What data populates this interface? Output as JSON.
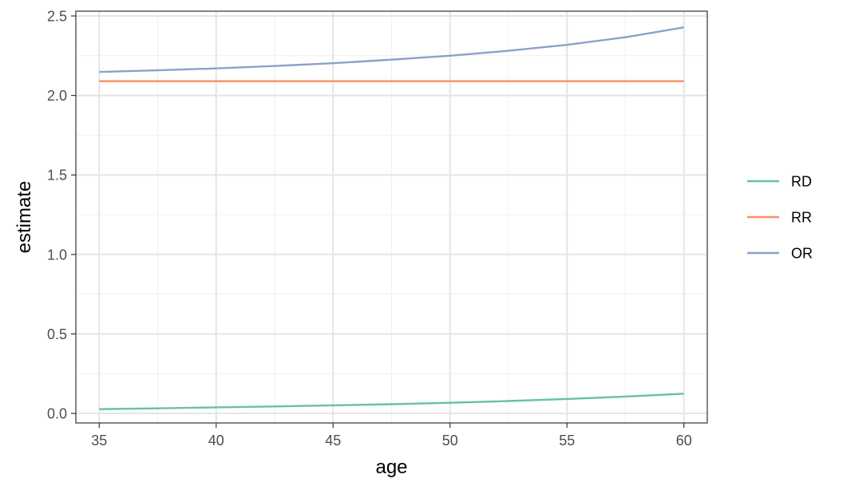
{
  "chart_data": {
    "type": "line",
    "title": "",
    "xlabel": "age",
    "ylabel": "estimate",
    "xlim": [
      34,
      61
    ],
    "ylim": [
      -0.06,
      2.53
    ],
    "x_ticks": [
      35,
      40,
      45,
      50,
      55,
      60
    ],
    "x_tick_labels": [
      "35",
      "40",
      "45",
      "50",
      "55",
      "60"
    ],
    "y_ticks": [
      0.0,
      0.5,
      1.0,
      1.5,
      2.0,
      2.5
    ],
    "y_tick_labels": [
      "0.0",
      "0.5",
      "1.0",
      "1.5",
      "2.0",
      "2.5"
    ],
    "grid": true,
    "legend_position": "right",
    "x": [
      35,
      37.5,
      40,
      42.5,
      45,
      47.5,
      50,
      52.5,
      55,
      57.5,
      60
    ],
    "series": [
      {
        "name": "RD",
        "color": "#66c2a5",
        "values": [
          0.027,
          0.032,
          0.038,
          0.044,
          0.051,
          0.058,
          0.067,
          0.078,
          0.091,
          0.106,
          0.124
        ]
      },
      {
        "name": "RR",
        "color": "#fc8d62",
        "values": [
          2.09,
          2.09,
          2.09,
          2.09,
          2.09,
          2.09,
          2.09,
          2.09,
          2.09,
          2.09,
          2.09
        ]
      },
      {
        "name": "OR",
        "color": "#8da0cb",
        "values": [
          2.148,
          2.158,
          2.17,
          2.185,
          2.203,
          2.225,
          2.25,
          2.281,
          2.318,
          2.366,
          2.428
        ]
      }
    ]
  }
}
